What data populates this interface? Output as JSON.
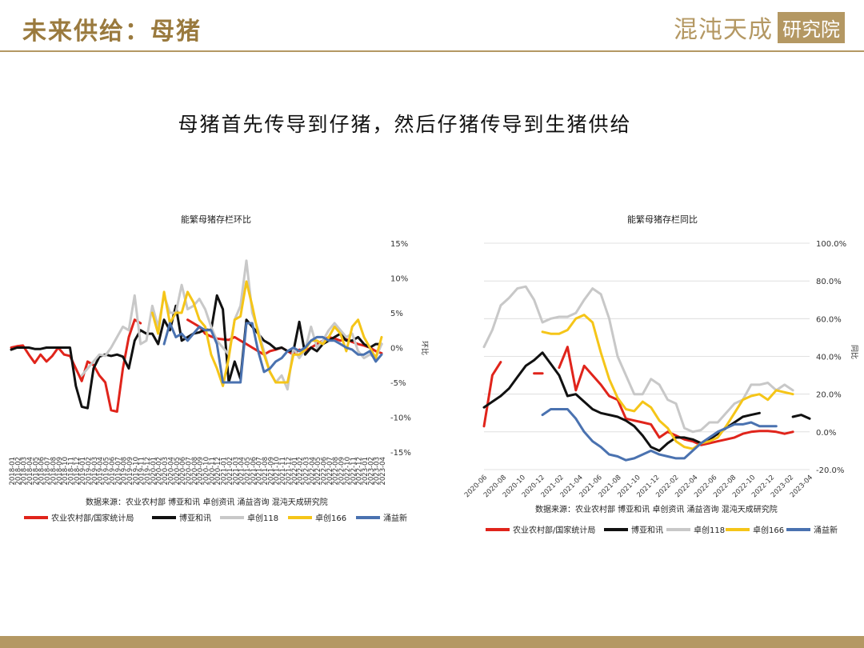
{
  "header": {
    "title": "未来供给：母猪"
  },
  "logo": {
    "main": "混沌天成",
    "box": "研究院"
  },
  "subtitle": "母猪首先传导到仔猪，然后仔猪传导到生猪供给",
  "colors": {
    "gold": "#b49863"
  },
  "series_colors": [
    "#e0241b",
    "#111111",
    "#c8c8c8",
    "#f5c518",
    "#4a72b0"
  ],
  "chart_data": [
    {
      "type": "line",
      "title": "能繁母猪存栏环比",
      "ylabel": "环比",
      "ylim": [
        -15,
        15
      ],
      "y_ticks": [
        15,
        10,
        5,
        0,
        -5,
        -10,
        -15
      ],
      "y_tick_labels": [
        "15%",
        "10%",
        "5%",
        "0%",
        "-5%",
        "-10%",
        "-15%"
      ],
      "x_tick_labels": [
        "2018-01",
        "2018-02",
        "2018-03",
        "2018-04",
        "2018-05",
        "2018-06",
        "2018-07",
        "2018-08",
        "2018-09",
        "2018-10",
        "2018-11",
        "2018-12",
        "2019-01",
        "2019-02",
        "2019-03",
        "2019-04",
        "2019-05",
        "2019-06",
        "2019-07",
        "2019-08",
        "2019-09",
        "2019-10",
        "2019-11",
        "2019-12",
        "2020-01",
        "2020-02",
        "2020-03",
        "2020-04",
        "2020-05",
        "2020-06",
        "2020-07",
        "2020-08",
        "2020-09",
        "2020-10",
        "2020-11",
        "2020-12",
        "2021-01",
        "2021-02",
        "2021-03",
        "2021-04",
        "2021-05",
        "2021-06",
        "2021-07",
        "2021-08",
        "2021-09",
        "2021-10",
        "2021-11",
        "2021-12",
        "2022-01",
        "2022-02",
        "2022-03",
        "2022-04",
        "2022-05",
        "2022-06",
        "2022-07",
        "2022-08",
        "2022-09",
        "2022-10",
        "2022-11",
        "2022-12",
        "2023-01",
        "2023-02",
        "2023-03",
        "2023-04"
      ],
      "source": "数据来源：农业农村部 博亚和讯 卓创资讯 涌益咨询 混沌天成研究院",
      "legend": [
        "农业农村部/国家统计局",
        "博亚和讯",
        "卓创118",
        "卓创166",
        "涌益新"
      ],
      "series": [
        {
          "name": "农业农村部/国家统计局",
          "values": [
            0,
            0.2,
            0.3,
            -1,
            -2.2,
            -1,
            -2,
            -1.2,
            0,
            -1,
            -1.2,
            -3,
            -4.8,
            -2,
            -2.5,
            -4,
            -5,
            -9,
            -9.2,
            -3,
            1.5,
            4,
            3.5,
            null,
            null,
            null,
            null,
            null,
            null,
            null,
            4,
            3.5,
            3,
            2,
            1.6,
            1.3,
            1.2,
            1.1,
            1.5,
            1,
            0.5,
            0,
            -0.5,
            -1,
            -0.5,
            -0.3,
            0,
            -0.5,
            -1,
            -0.3,
            -0.5,
            0,
            0.5,
            1,
            1.5,
            1.3,
            1,
            1.2,
            0.8,
            0.5,
            0.3,
            0,
            -0.5,
            -0.8
          ]
        },
        {
          "name": "博亚和讯",
          "values": [
            -0.3,
            0,
            0,
            0,
            -0.2,
            -0.2,
            0,
            0,
            0,
            0,
            0,
            -5.5,
            -8.5,
            -8.7,
            -3,
            -1.3,
            -1,
            -1.2,
            -1,
            -1.3,
            -3,
            1,
            2.5,
            2,
            2,
            0.5,
            4,
            2.5,
            6,
            1,
            1.5,
            2,
            2.2,
            2.6,
            2.5,
            7.5,
            5.5,
            -5,
            -2,
            -4.5,
            4,
            3,
            2,
            1,
            0.5,
            -0.2,
            0,
            -0.5,
            -0.5,
            3.7,
            -1,
            0,
            -0.5,
            0.5,
            1,
            1.5,
            2,
            1,
            1,
            1.5,
            0.5,
            0,
            0.5,
            0.5
          ]
        },
        {
          "name": "卓创118",
          "values": [
            null,
            null,
            null,
            null,
            null,
            null,
            null,
            null,
            null,
            null,
            null,
            null,
            -4,
            -3,
            -2,
            -1,
            -1.2,
            0,
            1.5,
            3,
            2.5,
            7.5,
            0.5,
            1,
            6,
            3,
            7.5,
            5,
            5,
            9,
            5.5,
            6,
            7,
            5.5,
            3,
            1,
            0,
            -1,
            4,
            6,
            12.5,
            5,
            2.5,
            -0.5,
            -3.5,
            -5,
            -4,
            -6,
            0,
            -1.5,
            -0.3,
            3,
            0,
            1,
            2.5,
            3.5,
            2.5,
            1.5,
            2,
            -0.5,
            -1.5,
            -1,
            -1.5,
            0.5
          ]
        },
        {
          "name": "卓创166",
          "values": [
            null,
            null,
            null,
            null,
            null,
            null,
            null,
            null,
            null,
            null,
            null,
            null,
            null,
            null,
            null,
            null,
            null,
            null,
            null,
            null,
            null,
            null,
            null,
            null,
            5,
            2,
            8,
            3.5,
            5,
            5,
            8,
            6.5,
            4,
            3,
            -1,
            -3,
            -5.5,
            -1.5,
            4,
            4.5,
            9.5,
            6,
            2,
            -1,
            -3.5,
            -5,
            -5,
            -5,
            -1,
            -1,
            -0.3,
            1,
            1,
            0.5,
            1.5,
            3,
            2,
            -0.5,
            3,
            4,
            1.5,
            0,
            -1.5,
            1.5
          ]
        },
        {
          "name": "涌益新",
          "values": [
            null,
            null,
            null,
            null,
            null,
            null,
            null,
            null,
            null,
            null,
            null,
            null,
            null,
            null,
            null,
            null,
            null,
            null,
            null,
            null,
            null,
            null,
            null,
            null,
            null,
            null,
            0.5,
            3.5,
            1.5,
            2,
            1,
            2,
            3,
            2.5,
            2.5,
            0.5,
            -5,
            -5,
            -5,
            -5,
            3.5,
            3.5,
            -0.5,
            -3.5,
            -3,
            -2,
            -1.5,
            -0.5,
            0,
            -0.5,
            0,
            1,
            1.5,
            1.5,
            1,
            1,
            0.5,
            0,
            -0.3,
            -1,
            -1,
            -0.5,
            -2,
            -1
          ]
        }
      ]
    },
    {
      "type": "line",
      "title": "能繁母猪存栏同比",
      "ylabel": "同比",
      "ylim": [
        -20,
        100
      ],
      "y_ticks": [
        100,
        80,
        60,
        40,
        20,
        0,
        -20
      ],
      "y_tick_labels": [
        "100.0%",
        "80.0%",
        "60.0%",
        "40.0%",
        "20.0%",
        "0.0%",
        "-20.0%"
      ],
      "x_tick_labels": [
        "2020-06",
        "2020-08",
        "2020-10",
        "2020-12",
        "2021-02",
        "2021-04",
        "2021-06",
        "2021-08",
        "2021-10",
        "2021-12",
        "2022-02",
        "2022-04",
        "2022-06",
        "2022-08",
        "2022-10",
        "2022-12",
        "2023-02",
        "2023-04"
      ],
      "source": "数据来源：农业农村部 博亚和讯 卓创资讯 涌益咨询 混沌天成研究院",
      "legend": [
        "农业农村部/国家统计局",
        "博亚和讯",
        "卓创118",
        "卓创166",
        "涌益新"
      ],
      "series": [
        {
          "name": "农业农村部/国家统计局",
          "values": [
            3,
            30,
            37,
            null,
            null,
            null,
            31,
            31,
            null,
            34,
            45,
            22,
            35,
            30,
            25,
            19,
            17,
            7,
            6,
            5,
            4,
            -3,
            0,
            -2,
            -4,
            -5,
            -7,
            -6,
            -5,
            -4,
            -3,
            -1,
            0,
            0.5,
            0.5,
            0,
            -1,
            0
          ]
        },
        {
          "name": "博亚和讯",
          "values": [
            13,
            16,
            19,
            23,
            29,
            35,
            38,
            42,
            36,
            30,
            19,
            20,
            16,
            12,
            10,
            9,
            8,
            6,
            3,
            -2,
            -8,
            -10,
            -6,
            -3,
            -3,
            -4,
            -6,
            -4,
            -1,
            2,
            5,
            8,
            9,
            10,
            null,
            null,
            null,
            8,
            9,
            7
          ]
        },
        {
          "name": "卓创118",
          "values": [
            45,
            54,
            67,
            71,
            76,
            77,
            70,
            58,
            60,
            61,
            61,
            63,
            70,
            76,
            73,
            60,
            40,
            30,
            20,
            20,
            28,
            25,
            17,
            15,
            2,
            0,
            1,
            5,
            5,
            10,
            15,
            17,
            25,
            25,
            26,
            22,
            25,
            22
          ]
        },
        {
          "name": "卓创166",
          "values": [
            null,
            null,
            null,
            null,
            null,
            null,
            null,
            53,
            52,
            52,
            54,
            60,
            62,
            58,
            42,
            28,
            18,
            12,
            11,
            16,
            13,
            6,
            2,
            -5,
            -8,
            -9,
            -6,
            -5,
            -3,
            3,
            10,
            17,
            19,
            20,
            17,
            22,
            21,
            20
          ]
        },
        {
          "name": "涌益新",
          "values": [
            null,
            null,
            null,
            null,
            null,
            null,
            null,
            9,
            12,
            12,
            12,
            7,
            0,
            -5,
            -8,
            -12,
            -13,
            -15,
            -14,
            -12,
            -10,
            -12,
            -13,
            -14,
            -14,
            -10,
            -6,
            -3,
            0,
            2,
            4,
            4,
            5,
            3,
            3,
            3
          ]
        }
      ]
    }
  ]
}
